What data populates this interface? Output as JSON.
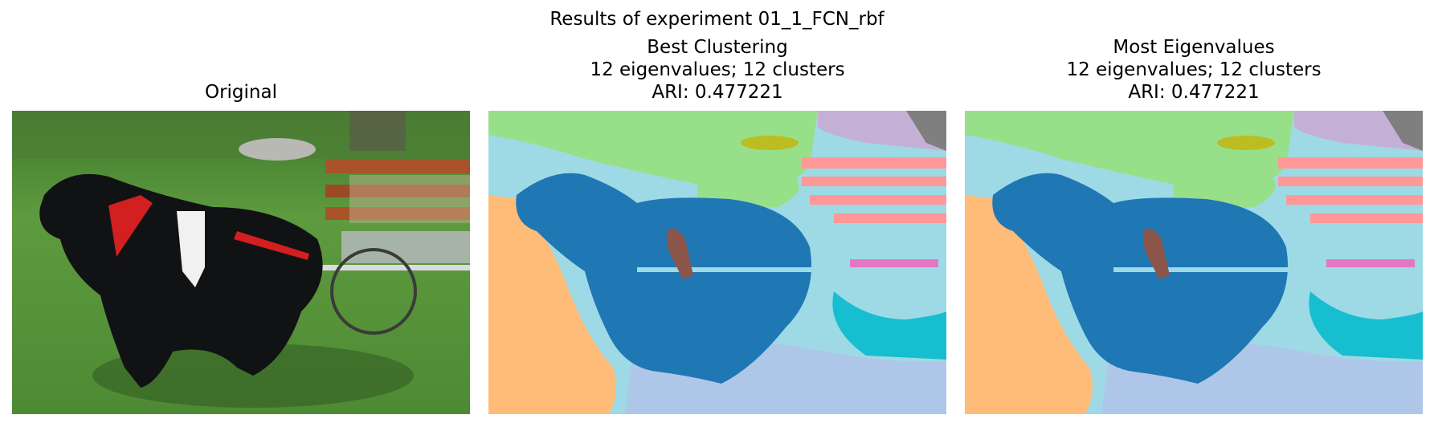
{
  "figure": {
    "suptitle": "Results of experiment 01_1_FCN_rbf"
  },
  "panels": [
    {
      "title_lines": [
        "Original"
      ],
      "image": "photo of black dog harnessed to a wooden cart on grass"
    },
    {
      "title_lines": [
        "Best Clustering",
        "12 eigenvalues; 12 clusters",
        "ARI: 0.477221"
      ],
      "image": "segmentation map"
    },
    {
      "title_lines": [
        "Most Eigenvalues",
        "12 eigenvalues; 12 clusters",
        "ARI: 0.477221"
      ],
      "image": "segmentation map"
    }
  ],
  "palette": {
    "dog": "#1f77b4",
    "sky_light": "#9edae5",
    "green": "#98df8a",
    "orange": "#ffbb78",
    "lavender": "#aec7e8",
    "pink": "#ff9896",
    "olive": "#bcbd22",
    "mauve": "#c5b0d5",
    "gray": "#7f7f7f",
    "magenta": "#e377c2",
    "cyan": "#17becf",
    "brown": "#8c564b"
  }
}
